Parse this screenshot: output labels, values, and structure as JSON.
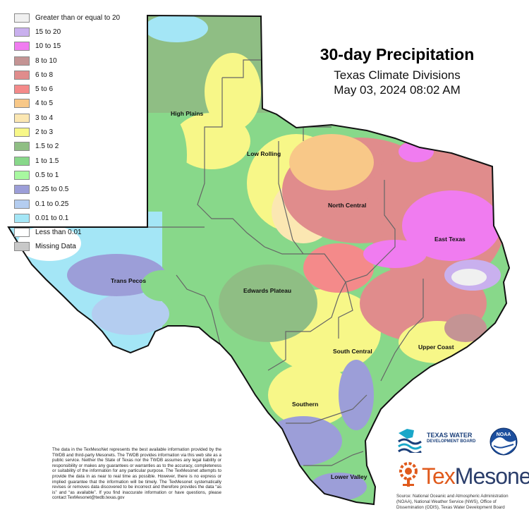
{
  "title": "30-day Precipitation",
  "subtitle": "Texas Climate Divisions",
  "timestamp": "May 03, 2024 08:02 AM",
  "legend": [
    {
      "label": "Greater than or equal to 20",
      "color": "#f0f0f0"
    },
    {
      "label": "15 to 20",
      "color": "#c9b0ee"
    },
    {
      "label": "10 to 15",
      "color": "#f07cf0"
    },
    {
      "label": "8 to 10",
      "color": "#c49494"
    },
    {
      "label": "6 to 8",
      "color": "#e08c8c"
    },
    {
      "label": "5 to 6",
      "color": "#f48a8a"
    },
    {
      "label": "4 to 5",
      "color": "#f8c888"
    },
    {
      "label": "3 to 4",
      "color": "#fbe7b2"
    },
    {
      "label": "2 to 3",
      "color": "#f7f788"
    },
    {
      "label": "1.5 to 2",
      "color": "#8fbe84"
    },
    {
      "label": "1 to 1.5",
      "color": "#88d88a"
    },
    {
      "label": "0.5 to 1",
      "color": "#a8f8a0"
    },
    {
      "label": "0.25 to 0.5",
      "color": "#9c9ed8"
    },
    {
      "label": "0.1 to 0.25",
      "color": "#b4cdf0"
    },
    {
      "label": "0.01 to 0.1",
      "color": "#a4e6f6"
    },
    {
      "label": "Less than 0.01",
      "color": "#ffffff"
    },
    {
      "label": "Missing Data",
      "color": "#c8c8c8"
    }
  ],
  "regions": {
    "high_plains": "High Plains",
    "low_rolling": "Low Rolling",
    "north_central": "North Central",
    "east_texas": "East Texas",
    "trans_pecos": "Trans Pecos",
    "edwards_plateau": "Edwards Plateau",
    "south_central": "South Central",
    "upper_coast": "Upper Coast",
    "southern": "Southern",
    "lower_valley": "Lower Valley"
  },
  "disclaimer": "The data in the TexMesoNet represents the best available information provided by the TWDB and third-party Mesonets. The TWDB provides information via this web site as a public service. Neither the State of Texas nor the TWDB assumes any legal liability or responsibility or makes any guarantees or warranties as to the accuracy, completeness or suitability of the information for any particular purpose. The TexMesonet attempts to provide the data in as near to real time as possible. However, there is no express or implied guarantee that the information will be timely. The TexMesonet systematically revises or removes data discovered to be incorrect and therefore provides the data “as is” and “as available”. If you find inaccurate information or have questions, please contact TexMesonet@twdb.texas.gov",
  "source": "Source: National Oceanic and Atmospheric Administration (NOAA), National Weather Service (NWS), Office of Dissemination (ODIS), Texas Water Development Board",
  "logos": {
    "twdb_line1": "TEXAS WATER",
    "twdb_line2": "DEVELOPMENT BOARD",
    "noaa": "NOAA",
    "texmesonet_a": "Tex",
    "texmesonet_b": "Mesonet"
  }
}
